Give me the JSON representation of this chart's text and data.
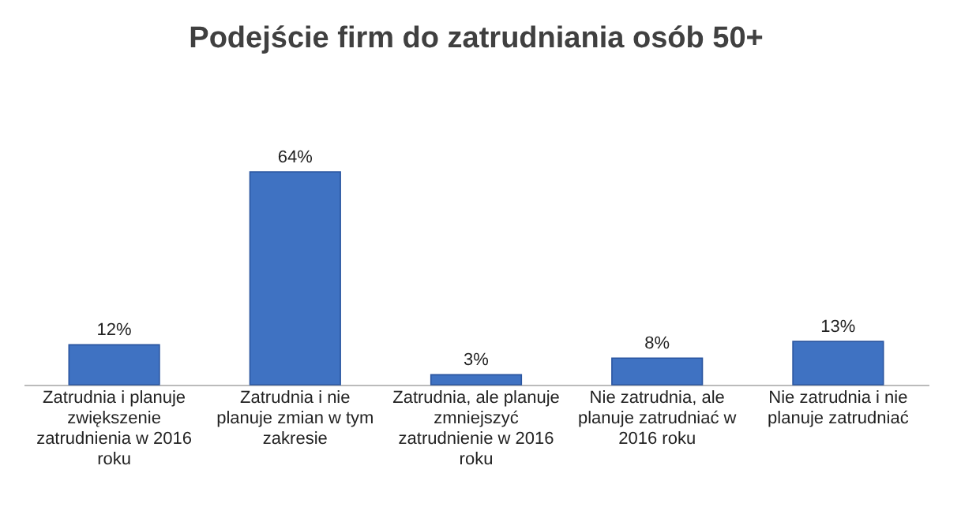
{
  "chart_data": {
    "type": "bar",
    "title": "Podejście firm do zatrudniania osób 50+",
    "categories": [
      "Zatrudnia i planuje zwiększenie zatrudnienia w 2016 roku",
      "Zatrudnia i nie planuje zmian w tym zakresie",
      "Zatrudnia, ale planuje zmniejszyć zatrudnienie w 2016 roku",
      "Nie zatrudnia, ale planuje zatrudniać w 2016 roku",
      "Nie zatrudnia i nie planuje zatrudniać"
    ],
    "values": [
      12,
      64,
      3,
      8,
      13
    ],
    "value_labels": [
      "12%",
      "64%",
      "3%",
      "8%",
      "13%"
    ],
    "color": "#3f72c2",
    "tick_labels": "x",
    "grid": false
  }
}
